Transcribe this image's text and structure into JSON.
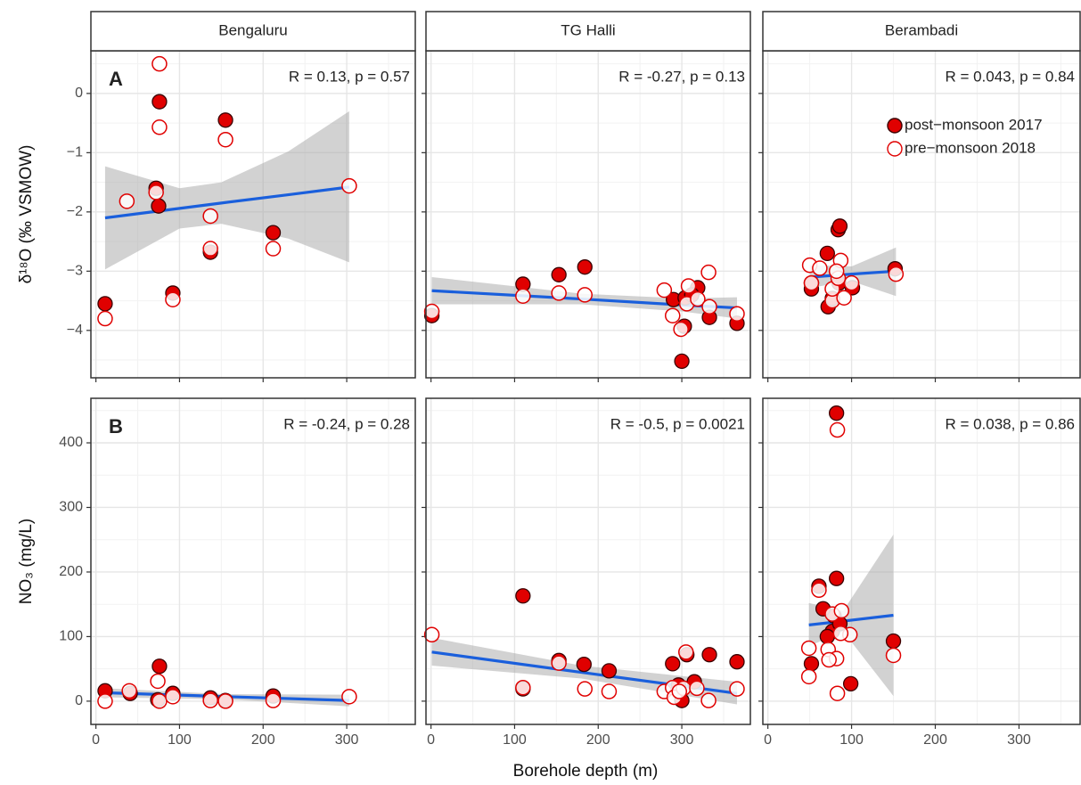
{
  "figure": {
    "xlabel": "Borehole depth (m)"
  },
  "chart_data": [
    {
      "type": "scatter",
      "title": "Bengaluru",
      "panel_label": "A",
      "ylabel": "δ¹⁸O (‰ VSMOW)",
      "annotation": "R = 0.13, p = 0.57",
      "xlim": [
        -6,
        382
      ],
      "xticks": [
        0,
        100,
        200,
        300
      ],
      "ylim": [
        -4.8,
        0.72
      ],
      "yticks": [
        {
          "value": -4,
          "label": "−4"
        },
        {
          "value": -3,
          "label": "−3"
        },
        {
          "value": -2,
          "label": "−2"
        },
        {
          "value": -1,
          "label": "−1"
        },
        0
      ],
      "grid": true,
      "series": [
        {
          "color": "#e00000",
          "marker": "filled",
          "x": [
            11,
            76,
            155,
            72,
            75,
            92,
            137,
            212
          ],
          "values": [
            -3.55,
            -0.14,
            -0.45,
            -1.6,
            -1.9,
            -3.37,
            -2.68,
            -2.35
          ]
        },
        {
          "color": "#e00000",
          "marker": "open",
          "x": [
            11,
            37,
            72,
            76,
            76,
            137,
            137,
            92,
            155,
            212,
            303
          ],
          "values": [
            -3.8,
            -1.82,
            -1.67,
            0.5,
            -0.57,
            -2.07,
            -2.62,
            -3.48,
            -0.78,
            -2.62,
            -1.56
          ]
        }
      ],
      "fit": {
        "color": "#1a5fdc",
        "x": [
          11,
          100,
          150,
          230,
          303
        ],
        "values": [
          -2.1,
          -1.94,
          -1.85,
          -1.71,
          -1.58
        ],
        "lower": [
          -2.97,
          -2.28,
          -2.2,
          -2.45,
          -2.85
        ],
        "upper": [
          -1.23,
          -1.6,
          -1.5,
          -0.98,
          -0.3
        ]
      }
    },
    {
      "type": "scatter",
      "title": "TG Halli",
      "annotation": "R = -0.27, p = 0.13",
      "xlim": [
        -6,
        382
      ],
      "xticks": [
        0,
        100,
        200,
        300
      ],
      "ylim": [
        -4.8,
        0.72
      ],
      "yticks": [
        -4,
        -3,
        -2,
        -1,
        0
      ],
      "grid": true,
      "series": [
        {
          "color": "#e00000",
          "marker": "filled",
          "x": [
            1,
            110,
            153,
            184,
            290,
            304,
            319,
            333,
            300,
            303,
            366,
            312
          ],
          "values": [
            -3.75,
            -3.22,
            -3.06,
            -2.93,
            -3.48,
            -3.45,
            -3.28,
            -3.78,
            -4.52,
            -3.93,
            -3.88,
            -3.4
          ]
        },
        {
          "color": "#e00000",
          "marker": "open",
          "x": [
            1,
            110,
            153,
            184,
            279,
            289,
            299,
            306,
            319,
            308,
            332,
            333,
            366
          ],
          "values": [
            -3.68,
            -3.42,
            -3.37,
            -3.4,
            -3.32,
            -3.75,
            -3.98,
            -3.55,
            -3.47,
            -3.25,
            -3.02,
            -3.6,
            -3.72
          ]
        }
      ],
      "fit": {
        "color": "#1a5fdc",
        "x": [
          1,
          180,
          300,
          366
        ],
        "values": [
          -3.33,
          -3.47,
          -3.57,
          -3.62
        ],
        "lower": [
          -3.56,
          -3.56,
          -3.68,
          -3.8
        ],
        "upper": [
          -3.1,
          -3.38,
          -3.46,
          -3.44
        ]
      }
    },
    {
      "type": "scatter",
      "title": "Berambadi",
      "annotation": "R = 0.043, p = 0.84",
      "legend": "top-right",
      "xlim": [
        -6,
        373
      ],
      "xticks": [
        0,
        100,
        200,
        300
      ],
      "ylim": [
        -4.8,
        0.72
      ],
      "yticks": [
        -4,
        -3,
        -2,
        -1,
        0
      ],
      "grid": true,
      "series": [
        {
          "name": "post−monsoon 2017",
          "color": "#e00000",
          "marker": "filled",
          "x": [
            52,
            52,
            71,
            84,
            86,
            72,
            85,
            101,
            152,
            77
          ],
          "values": [
            -3.3,
            -3.2,
            -2.7,
            -2.3,
            -2.24,
            -3.6,
            -3.2,
            -3.28,
            -2.96,
            -3.46
          ]
        },
        {
          "name": "pre−monsoon 2018",
          "color": "#e00000",
          "marker": "open",
          "x": [
            50,
            62,
            77,
            87,
            91,
            100,
            153,
            77,
            84,
            52,
            82
          ],
          "values": [
            -2.9,
            -2.95,
            -3.5,
            -2.82,
            -3.45,
            -3.2,
            -3.05,
            -3.3,
            -3.12,
            -3.2,
            -3.0
          ]
        }
      ],
      "fit": {
        "color": "#1a5fdc",
        "x": [
          50,
          100,
          153
        ],
        "values": [
          -3.1,
          -3.05,
          -3.0
        ],
        "lower": [
          -3.28,
          -3.17,
          -3.42
        ],
        "upper": [
          -2.9,
          -2.92,
          -2.6
        ]
      }
    },
    {
      "type": "scatter",
      "panel_label": "B",
      "ylabel": "NO₃ (mg/L)",
      "annotation": "R = -0.24, p = 0.28",
      "xlim": [
        -6,
        382
      ],
      "xticks": [
        0,
        100,
        200,
        300
      ],
      "ylim": [
        -36,
        469
      ],
      "yticks": [
        0,
        100,
        200,
        300,
        400
      ],
      "grid": true,
      "series": [
        {
          "color": "#e00000",
          "marker": "filled",
          "x": [
            11,
            41,
            76,
            74,
            92,
            137,
            212,
            155
          ],
          "values": [
            16,
            12,
            54,
            2,
            12,
            5,
            8,
            1
          ]
        },
        {
          "color": "#e00000",
          "marker": "open",
          "x": [
            11,
            40,
            74,
            76,
            92,
            137,
            155,
            212,
            303
          ],
          "values": [
            0,
            16,
            31,
            0,
            7,
            1,
            0,
            1,
            7
          ]
        }
      ],
      "fit": {
        "color": "#1a5fdc",
        "x": [
          11,
          150,
          303
        ],
        "values": [
          13,
          7.3,
          1
        ],
        "lower": [
          6,
          3,
          -8
        ],
        "upper": [
          20,
          11,
          10
        ]
      }
    },
    {
      "type": "scatter",
      "annotation": "R = -0.5, p = 0.0021",
      "xlim": [
        -6,
        382
      ],
      "xticks": [
        0,
        100,
        200,
        300
      ],
      "ylim": [
        -36,
        469
      ],
      "yticks": [
        0,
        100,
        200,
        300,
        400
      ],
      "grid": true,
      "series": [
        {
          "color": "#e00000",
          "marker": "filled",
          "x": [
            110,
            110,
            153,
            183,
            213,
            289,
            306,
            333,
            300,
            315,
            366,
            296
          ],
          "values": [
            163,
            19,
            63,
            57,
            47,
            58,
            72,
            72,
            1,
            30,
            61,
            25
          ]
        },
        {
          "color": "#e00000",
          "marker": "open",
          "x": [
            1,
            110,
            153,
            184,
            213,
            279,
            289,
            291,
            305,
            302,
            318,
            332,
            366,
            297
          ],
          "values": [
            103,
            21,
            59,
            19,
            15,
            15,
            21,
            6,
            76,
            20,
            20,
            1,
            19,
            15
          ]
        }
      ],
      "fit": {
        "color": "#1a5fdc",
        "x": [
          1,
          180,
          366
        ],
        "values": [
          76,
          44.6,
          12
        ],
        "lower": [
          55,
          35,
          -5
        ],
        "upper": [
          98,
          55,
          30
        ]
      }
    },
    {
      "type": "scatter",
      "annotation": "R = 0.038, p = 0.86",
      "xlim": [
        -6,
        373
      ],
      "xticks": [
        0,
        100,
        200,
        300
      ],
      "ylim": [
        -36,
        469
      ],
      "yticks": [
        0,
        100,
        200,
        300,
        400
      ],
      "grid": true,
      "series": [
        {
          "color": "#e00000",
          "marker": "filled",
          "x": [
            82,
            79,
            61,
            52,
            82,
            77,
            99,
            150,
            71,
            86,
            66
          ],
          "values": [
            446,
            132,
            178,
            58,
            190,
            108,
            27,
            93,
            100,
            120,
            143
          ]
        },
        {
          "color": "#e00000",
          "marker": "open",
          "x": [
            83,
            61,
            49,
            49,
            72,
            77,
            88,
            83,
            82,
            98,
            150,
            73,
            87
          ],
          "values": [
            420,
            172,
            82,
            38,
            80,
            135,
            140,
            12,
            66,
            103,
            71,
            64,
            105
          ]
        }
      ],
      "fit": {
        "color": "#1a5fdc",
        "x": [
          49,
          90,
          150
        ],
        "values": [
          118,
          124,
          133
        ],
        "lower": [
          85,
          108,
          8
        ],
        "upper": [
          152,
          140,
          258
        ]
      }
    }
  ]
}
